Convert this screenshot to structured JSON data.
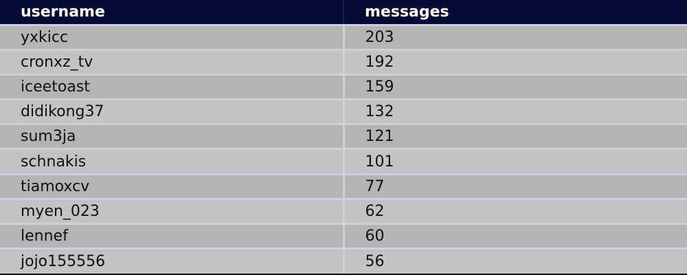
{
  "table": {
    "headers": [
      "username",
      "messages"
    ],
    "rows": [
      {
        "username": "yxkicc",
        "messages": "203"
      },
      {
        "username": "cronxz_tv",
        "messages": "192"
      },
      {
        "username": "iceetoast",
        "messages": "159"
      },
      {
        "username": "didikong37",
        "messages": "132"
      },
      {
        "username": "sum3ja",
        "messages": "121"
      },
      {
        "username": "schnakis",
        "messages": "101"
      },
      {
        "username": "tiamoxcv",
        "messages": "77"
      },
      {
        "username": "myen_023",
        "messages": "62"
      },
      {
        "username": "lennef",
        "messages": "60"
      },
      {
        "username": "jojo155556",
        "messages": "56"
      }
    ]
  },
  "colors": {
    "header_bg": "#060b36",
    "row_odd": "#b4b4b4",
    "row_even": "#c3c3c3"
  }
}
